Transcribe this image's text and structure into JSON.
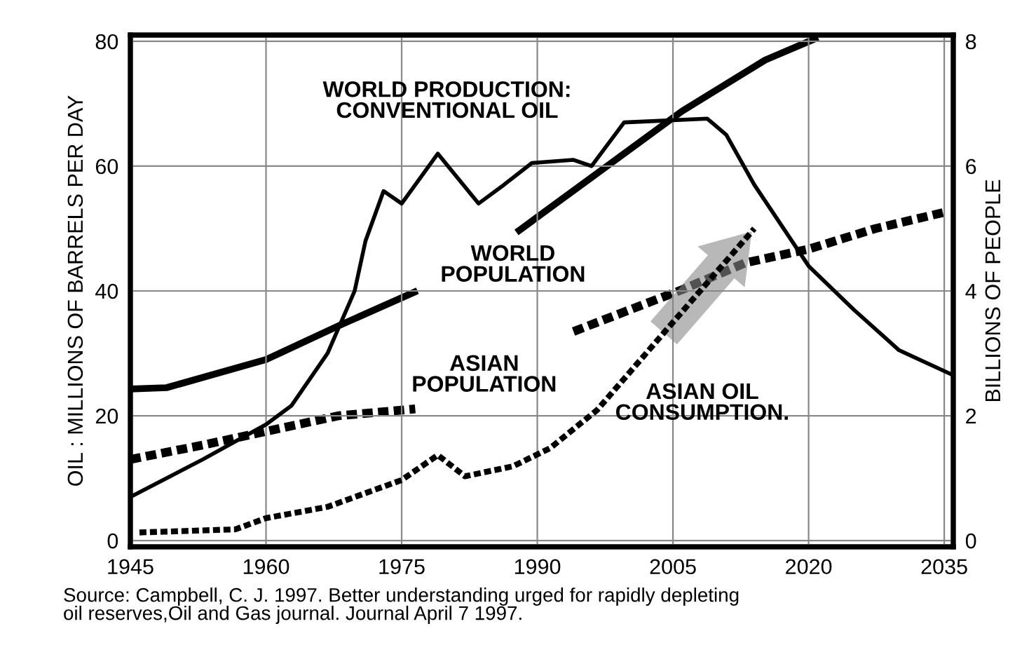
{
  "chart_data": {
    "type": "line",
    "xlabel": null,
    "ylabel": "OIL : MILLIONS OF BARRELS PER DAY",
    "y2label": "BILLIONS OF PEOPLE",
    "xlim": [
      1945,
      2036
    ],
    "xticks": [
      1945,
      1960,
      1975,
      1990,
      2005,
      2020,
      2035
    ],
    "ylim": [
      -1,
      81
    ],
    "yticks": [
      0,
      20,
      40,
      60,
      80
    ],
    "y2lim": [
      -0.1,
      8.1
    ],
    "y2ticks": [
      0,
      2,
      4,
      6,
      8
    ],
    "grid": true,
    "legend": false,
    "series": [
      {
        "name": "WORLD PRODUCTION:\nCONVENTIONAL OIL",
        "color": "#000000",
        "line_style": "solid",
        "x": [
          1945,
          1953,
          1960,
          1962.8,
          1966.8,
          1969.8,
          1971,
          1973,
          1975,
          1979,
          1983.5,
          1986.3,
          1989.4,
          1994,
          1996,
          1999.6,
          2008.8,
          2010.9,
          2014,
          2020,
          2025,
          2030,
          2036
        ],
        "values": [
          7,
          13,
          18.6,
          21.6,
          30,
          40,
          48,
          56,
          54,
          62,
          54,
          57,
          60.5,
          61,
          60,
          67,
          67.6,
          65,
          57,
          44,
          37,
          30.5,
          26.5
        ]
      },
      {
        "name": "WORLD\nPOPULATION",
        "color": "#000000",
        "line_style": "solid",
        "axis": "y2",
        "x": [
          1945,
          1949,
          1960,
          1968,
          1976.4,
          1982,
          1988,
          2006,
          2015.2,
          2020.7
        ],
        "values": [
          2.43,
          2.45,
          2.9,
          3.44,
          3.98,
          null,
          4.97,
          6.88,
          7.7,
          8.04
        ]
      },
      {
        "name": "ASIAN\nPOPULATION",
        "color": "#000000",
        "line_style": "dashed",
        "axis": "y2",
        "x": [
          1945,
          1953,
          1960,
          1968,
          1976.5,
          1985,
          1994,
          2006,
          2013,
          2020,
          2027.4,
          2035
        ],
        "values": [
          1.3,
          1.53,
          1.75,
          2.0,
          2.11,
          null,
          3.35,
          4.02,
          4.45,
          4.67,
          5.0,
          5.26
        ]
      },
      {
        "name": "ASIAN OIL\nCONSUMPTION.",
        "color": "#000000",
        "line_style": "dashed",
        "x": [
          1946,
          1956.6,
          1960,
          1966.8,
          1975,
          1979,
          1982,
          1987.3,
          1991.4,
          1996.6,
          2000.6,
          2003.7,
          2014
        ],
        "values": [
          1.3,
          1.8,
          3.6,
          5.4,
          9.7,
          13.7,
          10.3,
          11.9,
          14.8,
          20.9,
          27.6,
          32.8,
          50
        ]
      }
    ],
    "annotations": [
      "Source: Campbell, C. J. 1997. Better understanding urged for rapidly depleting\noil reserves,Oil and Gas journal. Journal April 7 1997."
    ]
  }
}
